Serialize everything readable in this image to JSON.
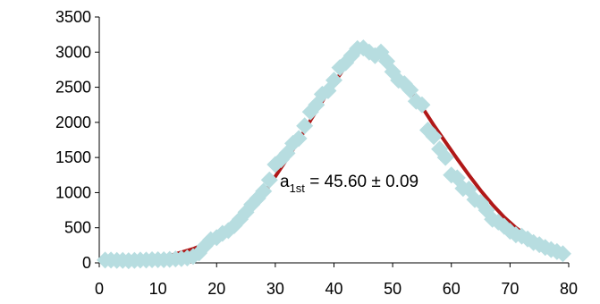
{
  "chart_data": {
    "type": "scatter",
    "title": "",
    "xlabel": "",
    "ylabel": "",
    "xlim": [
      0,
      80
    ],
    "ylim": [
      0,
      3500
    ],
    "x_ticks": [
      0,
      10,
      20,
      30,
      40,
      50,
      60,
      70,
      80
    ],
    "y_ticks": [
      0,
      500,
      1000,
      1500,
      2000,
      2500,
      3000,
      3500
    ],
    "grid": false,
    "legend": "none",
    "colors": {
      "points": "#b7dde0",
      "fit_line": "#b01818",
      "axis": "#000000"
    },
    "annotation": {
      "main": "a",
      "subscript": "1st",
      "rest": " = 45.60 ± 0.09"
    },
    "series": [
      {
        "kind": "fit-line",
        "x": [
          0,
          4,
          8,
          10,
          12,
          14,
          16,
          18,
          20,
          22,
          24,
          26,
          28,
          30,
          32,
          34,
          36,
          38,
          40,
          42,
          44,
          45.6,
          47,
          49,
          51,
          53,
          55,
          57,
          59,
          61,
          63,
          65,
          67,
          69,
          71,
          73,
          75,
          77,
          79
        ],
        "y": [
          20,
          30,
          50,
          70,
          100,
          150,
          200,
          270,
          360,
          470,
          600,
          780,
          980,
          1230,
          1480,
          1740,
          2030,
          2300,
          2560,
          2800,
          2990,
          3050,
          3000,
          2850,
          2660,
          2450,
          2220,
          1960,
          1720,
          1480,
          1250,
          1030,
          830,
          650,
          500,
          380,
          290,
          210,
          150
        ]
      },
      {
        "kind": "points",
        "x": [
          1,
          2,
          3,
          4,
          5,
          6,
          7,
          8,
          9,
          10,
          11,
          12,
          13,
          14,
          15,
          16,
          17,
          18,
          19,
          20,
          21,
          22,
          23,
          24,
          25,
          26,
          27,
          28,
          29,
          30,
          31,
          32,
          33,
          34,
          35,
          36,
          37,
          38,
          39,
          40,
          41,
          42,
          43,
          44,
          45,
          46,
          47,
          48,
          49,
          50,
          51,
          52,
          53,
          54,
          55,
          56,
          57,
          58,
          59,
          60,
          61,
          62,
          63,
          64,
          65,
          66,
          67,
          68,
          69,
          70,
          71,
          72,
          73,
          74,
          75,
          76,
          77,
          78,
          79
        ],
        "y": [
          40,
          40,
          35,
          35,
          30,
          35,
          40,
          40,
          45,
          45,
          45,
          50,
          55,
          60,
          70,
          90,
          140,
          240,
          330,
          360,
          420,
          460,
          530,
          620,
          720,
          830,
          920,
          1020,
          1180,
          1400,
          1470,
          1560,
          1700,
          1770,
          1950,
          2150,
          2250,
          2400,
          2450,
          2600,
          2780,
          2850,
          2950,
          3050,
          3060,
          3000,
          2950,
          3000,
          2870,
          2720,
          2600,
          2550,
          2460,
          2300,
          2250,
          1890,
          1800,
          1620,
          1500,
          1250,
          1210,
          1060,
          1050,
          900,
          860,
          750,
          620,
          580,
          520,
          450,
          400,
          380,
          340,
          290,
          260,
          220,
          190,
          160,
          130
        ]
      }
    ]
  }
}
